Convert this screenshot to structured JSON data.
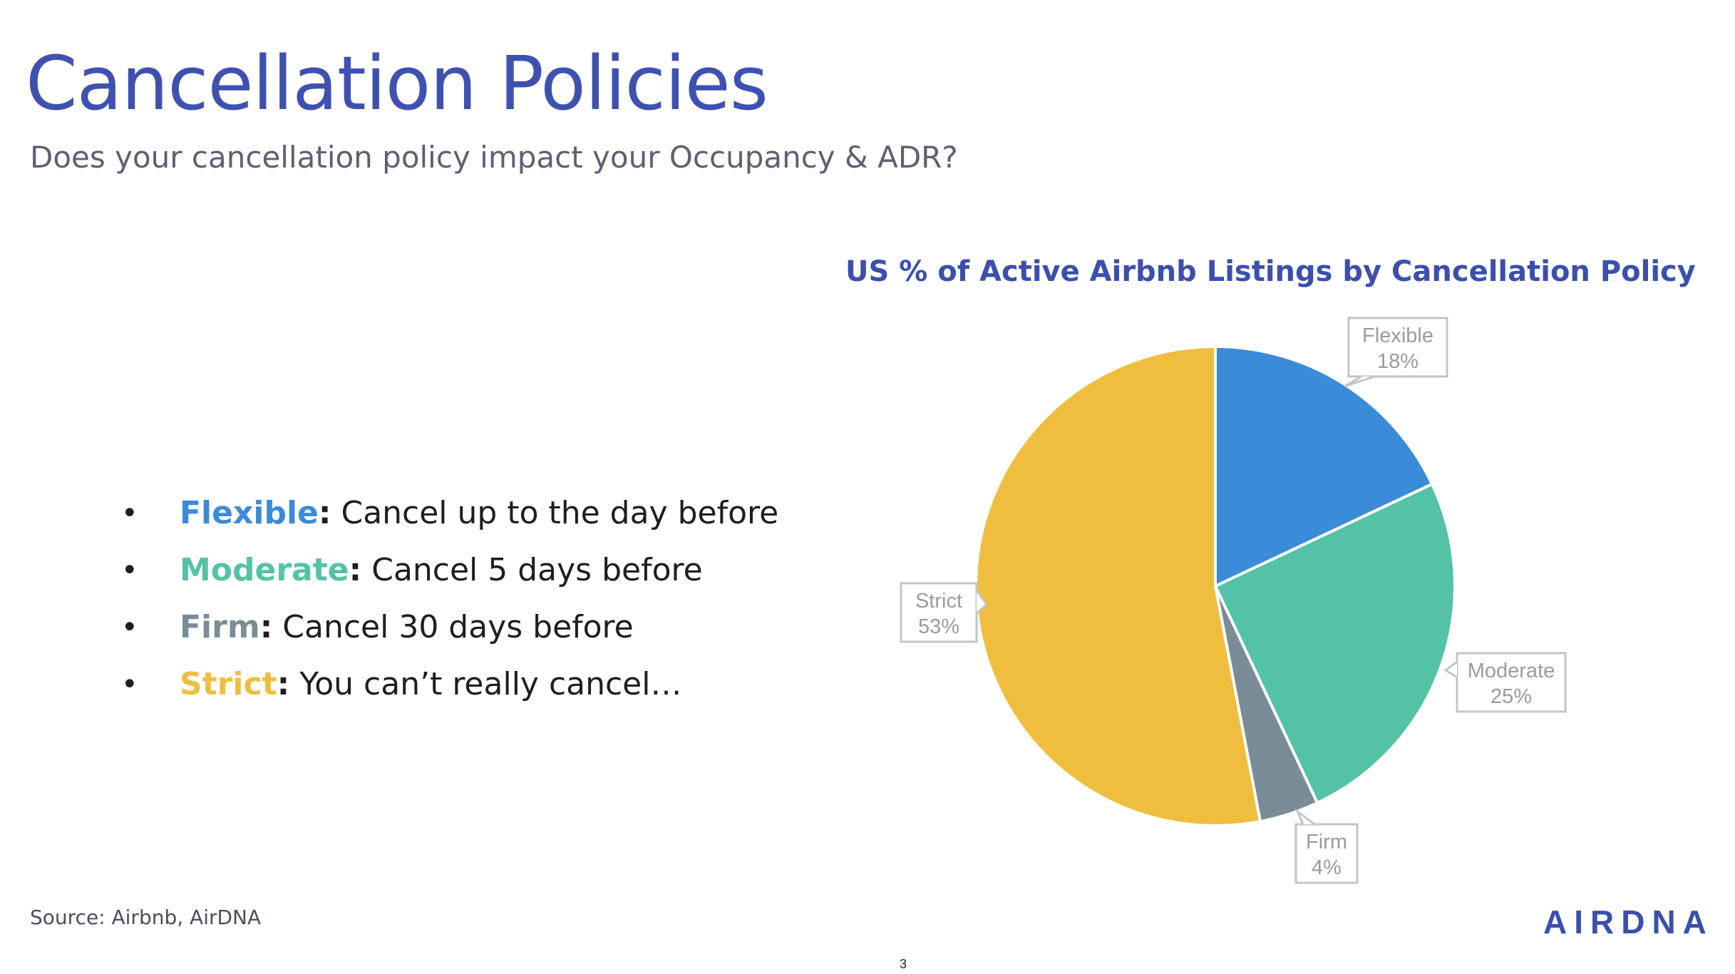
{
  "slide": {
    "title": "Cancellation Policies",
    "subtitle": "Does your cancellation policy impact your Occupancy & ADR?",
    "source": "Source: Airbnb, AirDNA",
    "page_number": "3",
    "logo_text": "AIRDNA"
  },
  "bullets": [
    {
      "term": "Flexible",
      "colon": ":",
      "text": " Cancel up to the day before",
      "color": "#3a8bd8"
    },
    {
      "term": "Moderate",
      "colon": ":",
      "text": " Cancel 5 days before",
      "color": "#54c2a6"
    },
    {
      "term": "Firm",
      "colon": ":",
      "text": " Cancel 30 days before",
      "color": "#7a8c98"
    },
    {
      "term": "Strict",
      "colon": ":",
      "text": " You can’t really cancel…",
      "color": "#f0be3e"
    }
  ],
  "chart_data": {
    "type": "pie",
    "title": "US % of Active Airbnb Listings by Cancellation Policy",
    "categories": [
      "Flexible",
      "Moderate",
      "Firm",
      "Strict"
    ],
    "values": [
      18,
      25,
      4,
      53
    ],
    "labels": [
      "18%",
      "25%",
      "4%",
      "53%"
    ],
    "colors": [
      "#3a8bd8",
      "#54c2a6",
      "#7a8c98",
      "#f0be3e"
    ],
    "start": "12 o'clock",
    "direction": "clockwise",
    "label_style": "callout boxes"
  }
}
